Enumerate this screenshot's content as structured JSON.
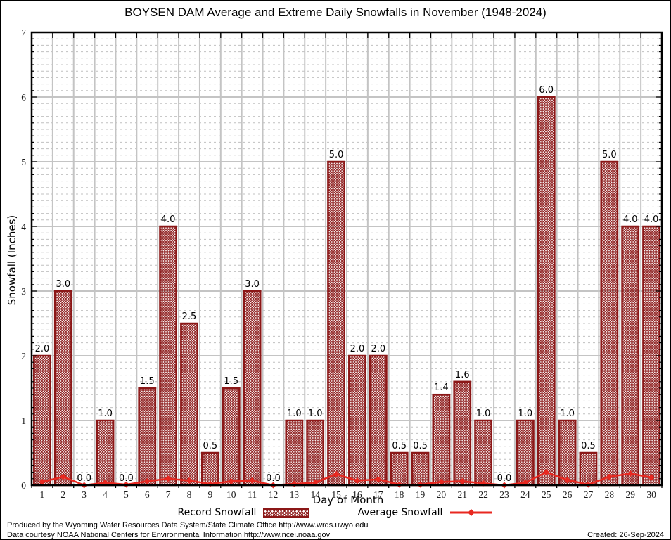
{
  "chart_data": {
    "type": "bar",
    "title": "BOYSEN DAM Average and Extreme Daily Snowfalls in November (1948-2024)",
    "xlabel": "Day of Month",
    "ylabel": "Snowfall (Inches)",
    "ylim": [
      0,
      7
    ],
    "y_major_step": 1,
    "y_minor_step": 0.1,
    "grid": true,
    "legend_position": "bottom",
    "categories": [
      1,
      2,
      3,
      4,
      5,
      6,
      7,
      8,
      9,
      10,
      11,
      12,
      13,
      14,
      15,
      16,
      17,
      18,
      19,
      20,
      21,
      22,
      23,
      24,
      25,
      26,
      27,
      28,
      29,
      30
    ],
    "series": [
      {
        "name": "Record Snowfall",
        "type": "bar",
        "color": "#8b1717",
        "values": [
          2.0,
          3.0,
          0.0,
          1.0,
          0.0,
          1.5,
          4.0,
          2.5,
          0.5,
          1.5,
          3.0,
          0.0,
          1.0,
          1.0,
          5.0,
          2.0,
          2.0,
          0.5,
          0.5,
          1.4,
          1.6,
          1.0,
          0.0,
          1.0,
          6.0,
          1.0,
          0.5,
          5.0,
          4.0,
          4.0
        ]
      },
      {
        "name": "Average Snowfall",
        "type": "line",
        "color": "#e82820",
        "values": [
          0.05,
          0.13,
          0.0,
          0.04,
          0.01,
          0.06,
          0.1,
          0.07,
          0.02,
          0.06,
          0.07,
          0.0,
          0.02,
          0.04,
          0.17,
          0.07,
          0.09,
          0.01,
          0.01,
          0.05,
          0.06,
          0.03,
          0.0,
          0.04,
          0.2,
          0.08,
          0.01,
          0.13,
          0.18,
          0.12
        ]
      }
    ]
  },
  "colors": {
    "bar": "#8b1717",
    "line": "#e82820",
    "grid_major": "#c4c4c4",
    "grid_minor": "#c0c0c0",
    "axis": "#000000"
  },
  "footer": {
    "line1": "Produced by the Wyoming Water Resources Data System/State Climate Office http://www.wrds.uwyo.edu",
    "line2": "Data courtesy NOAA National Centers for Environmental Information http://www.ncei.noaa.gov",
    "created": "Created: 26-Sep-2024"
  }
}
